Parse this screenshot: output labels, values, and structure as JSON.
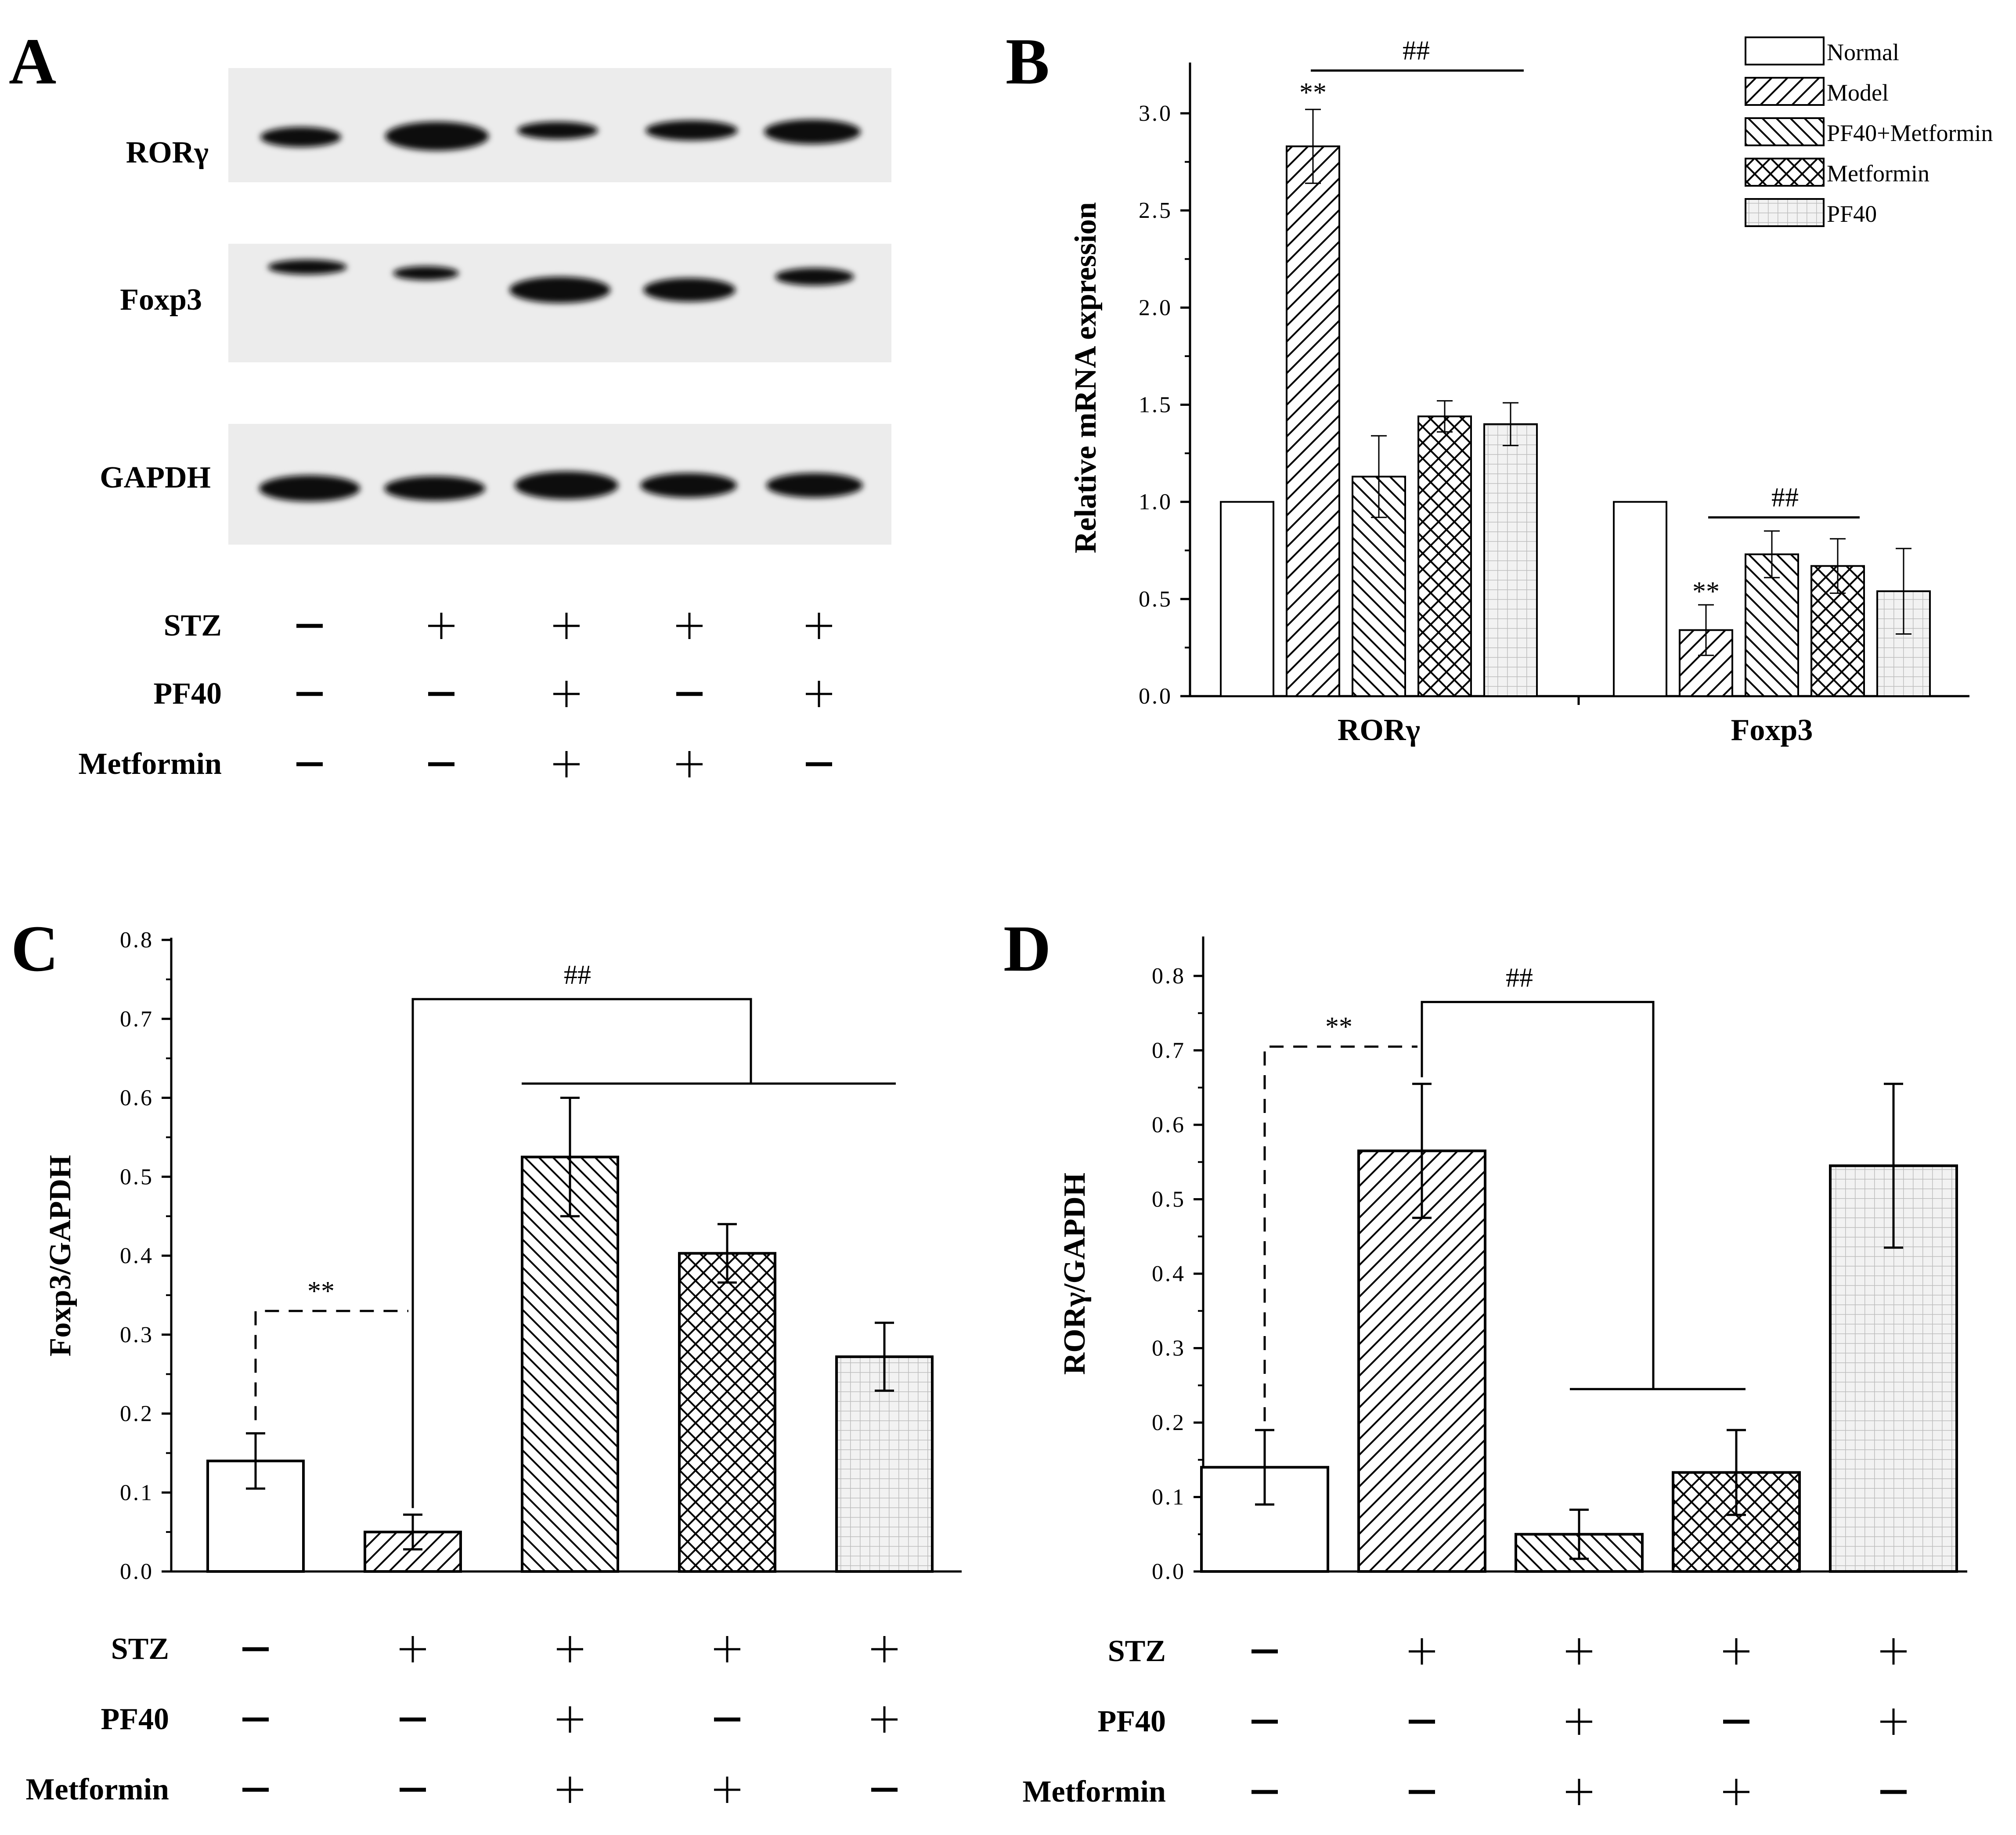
{
  "figure": {
    "panels": [
      "A",
      "B",
      "C",
      "D"
    ]
  },
  "colors": {
    "axis": "#000000",
    "blot_bg": "#ececec",
    "band": "#111111",
    "pattern_pf40": "#bdbdbd"
  },
  "panel_a": {
    "letter": "A",
    "blots": [
      {
        "label": "RORγ",
        "intensity": [
          0.75,
          1.0,
          0.35,
          0.7,
          0.95
        ]
      },
      {
        "label": "Foxp3",
        "intensity": [
          0.75,
          0.5,
          1.0,
          0.9,
          0.75
        ]
      },
      {
        "label": "GAPDH",
        "intensity": [
          0.95,
          0.95,
          0.95,
          0.95,
          0.95
        ]
      }
    ],
    "treatments": [
      {
        "label": "STZ",
        "signs": [
          "−",
          "+",
          "+",
          "+",
          "+"
        ]
      },
      {
        "label": "PF40",
        "signs": [
          "−",
          "−",
          "+",
          "−",
          "+"
        ]
      },
      {
        "label": "Metformin",
        "signs": [
          "−",
          "−",
          "+",
          "+",
          "−"
        ]
      }
    ]
  },
  "chart_data": [
    {
      "panel": "B",
      "type": "bar",
      "ylabel": "Relative mRNA expression",
      "ylim": [
        0,
        3.25
      ],
      "yticks": [
        "0.0",
        "0.5",
        "1.0",
        "1.5",
        "2.0",
        "2.5",
        "3.0"
      ],
      "categories": [
        "RORγ",
        "Foxp3"
      ],
      "series": [
        {
          "name": "Normal",
          "pattern": "plain",
          "values": [
            1.0,
            1.0
          ],
          "errors": [
            0,
            0
          ]
        },
        {
          "name": "Model",
          "pattern": "hatch-fwd",
          "values": [
            2.83,
            0.34
          ],
          "errors": [
            0.19,
            0.13
          ]
        },
        {
          "name": "PF40+Metformin",
          "pattern": "hatch-back",
          "values": [
            1.13,
            0.73
          ],
          "errors": [
            0.21,
            0.12
          ]
        },
        {
          "name": "Metformin",
          "pattern": "cross",
          "values": [
            1.44,
            0.67
          ],
          "errors": [
            0.08,
            0.14
          ]
        },
        {
          "name": "PF40",
          "pattern": "grid",
          "values": [
            1.4,
            0.54
          ],
          "errors": [
            0.11,
            0.22
          ]
        }
      ],
      "annotations": [
        {
          "text": "**",
          "category": 0,
          "series": 1
        },
        {
          "text": "##",
          "category": 0,
          "from_series": 1,
          "to_series": 4
        },
        {
          "text": "**",
          "category": 1,
          "series": 1
        },
        {
          "text": "##",
          "category": 1,
          "from_series": 1,
          "to_series": 3
        }
      ]
    },
    {
      "panel": "C",
      "type": "bar",
      "ylabel": "Foxp3/GAPDH",
      "ylim": [
        0,
        0.8
      ],
      "yticks": [
        "0.0",
        "0.1",
        "0.2",
        "0.3",
        "0.4",
        "0.5",
        "0.6",
        "0.7",
        "0.8"
      ],
      "categories": [
        "Normal",
        "Model",
        "PF40+Metformin",
        "Metformin",
        "PF40"
      ],
      "patterns": [
        "plain",
        "hatch-fwd",
        "hatch-back",
        "cross",
        "grid"
      ],
      "values": [
        0.14,
        0.05,
        0.525,
        0.403,
        0.272
      ],
      "errors": [
        0.035,
        0.022,
        0.075,
        0.037,
        0.043
      ],
      "annotations": [
        {
          "text": "**",
          "level": 0.33
        },
        {
          "text": "##",
          "level": 0.725,
          "group_level": 0.618
        }
      ],
      "treatments": [
        {
          "label": "STZ",
          "signs": [
            "−",
            "+",
            "+",
            "+",
            "+"
          ]
        },
        {
          "label": "PF40",
          "signs": [
            "−",
            "−",
            "+",
            "−",
            "+"
          ]
        },
        {
          "label": "Metformin",
          "signs": [
            "−",
            "−",
            "+",
            "+",
            "−"
          ]
        }
      ]
    },
    {
      "panel": "D",
      "type": "bar",
      "ylabel": "RORγ/GAPDH",
      "ylim": [
        0,
        0.85
      ],
      "yticks": [
        "0.0",
        "0.1",
        "0.2",
        "0.3",
        "0.4",
        "0.5",
        "0.6",
        "0.7",
        "0.8"
      ],
      "categories": [
        "Normal",
        "Model",
        "PF40+Metformin",
        "Metformin",
        "PF40"
      ],
      "patterns": [
        "plain",
        "hatch-fwd",
        "hatch-back",
        "cross",
        "grid"
      ],
      "values": [
        0.14,
        0.565,
        0.05,
        0.133,
        0.545
      ],
      "errors": [
        0.05,
        0.09,
        0.033,
        0.057,
        0.11
      ],
      "annotations": [
        {
          "text": "**",
          "level": 0.705
        },
        {
          "text": "##",
          "level": 0.765,
          "group_level": 0.245
        }
      ],
      "treatments": [
        {
          "label": "STZ",
          "signs": [
            "−",
            "+",
            "+",
            "+",
            "+"
          ]
        },
        {
          "label": "PF40",
          "signs": [
            "−",
            "−",
            "+",
            "−",
            "+"
          ]
        },
        {
          "label": "Metformin",
          "signs": [
            "−",
            "−",
            "+",
            "+",
            "−"
          ]
        }
      ]
    }
  ]
}
